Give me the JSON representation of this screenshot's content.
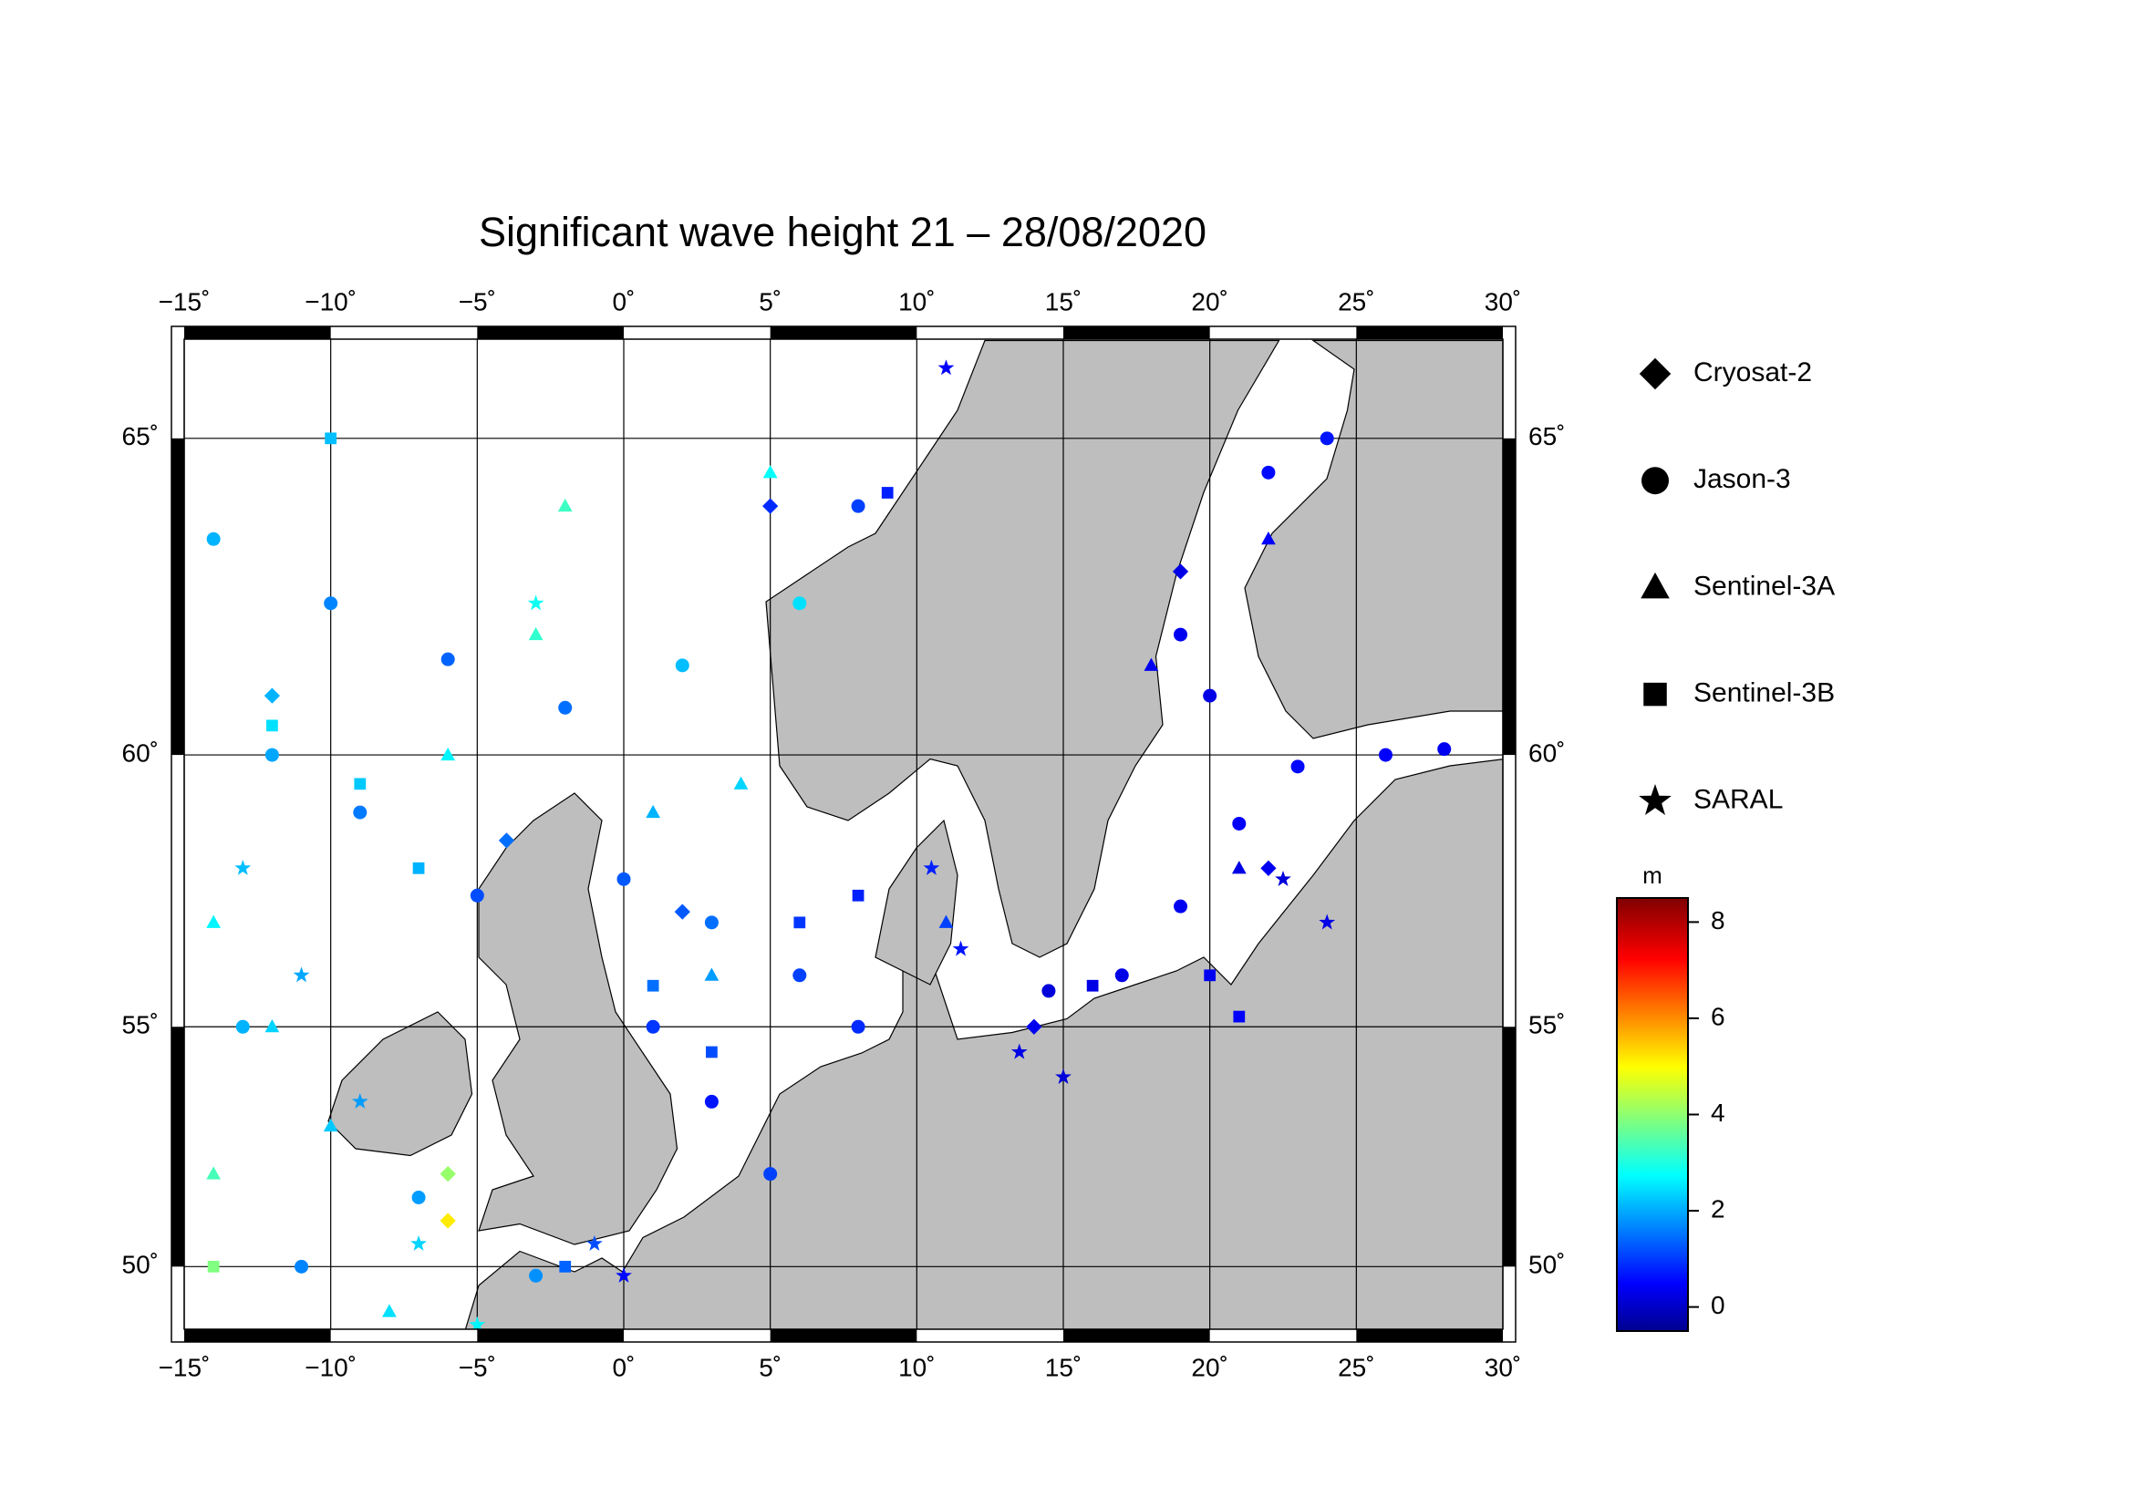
{
  "chart_data": {
    "type": "scatter",
    "title": "Significant wave height 21 – 28/08/2020",
    "xlim": [
      -15,
      30
    ],
    "ylim": [
      48.6,
      66.4
    ],
    "projection": "mercator",
    "grid": true,
    "xticks": [
      {
        "value": -15,
        "label": "−15˚"
      },
      {
        "value": -10,
        "label": "−10˚"
      },
      {
        "value": -5,
        "label": "−5˚"
      },
      {
        "value": 0,
        "label": "0˚"
      },
      {
        "value": 5,
        "label": "5˚"
      },
      {
        "value": 10,
        "label": "10˚"
      },
      {
        "value": 15,
        "label": "15˚"
      },
      {
        "value": 20,
        "label": "20˚"
      },
      {
        "value": 25,
        "label": "25˚"
      },
      {
        "value": 30,
        "label": "30˚"
      }
    ],
    "yticks": [
      {
        "value": 50,
        "label": "50˚"
      },
      {
        "value": 55,
        "label": "55˚"
      },
      {
        "value": 60,
        "label": "60˚"
      },
      {
        "value": 65,
        "label": "65˚"
      }
    ],
    "colorbar": {
      "label": "m",
      "lim": [
        -0.5,
        8.5
      ],
      "ticks": [
        0,
        2,
        4,
        6,
        8
      ],
      "colormap": "jet"
    },
    "series": [
      {
        "name": "Cryosat-2",
        "marker": "diamond",
        "x": [
          5,
          -12,
          -4,
          2,
          14,
          19,
          22,
          -6,
          -6
        ],
        "y": [
          64,
          61,
          58.5,
          57.2,
          55,
          63,
          58,
          52,
          51
        ],
        "values": [
          1.0,
          2.2,
          1.6,
          1.4,
          0.5,
          0.4,
          0.5,
          4.2,
          5.3
        ]
      },
      {
        "name": "Jason-3",
        "marker": "circle",
        "x": [
          -14,
          -10,
          -6,
          -2,
          2,
          6,
          8,
          0,
          3,
          6,
          8,
          -5,
          -9,
          -12,
          1,
          3,
          5,
          17,
          19,
          21,
          23,
          26,
          28,
          20,
          19,
          22,
          24,
          -11,
          -7,
          -3,
          14.5,
          -13
        ],
        "y": [
          63.5,
          62.5,
          61.6,
          60.8,
          61.5,
          62.5,
          64,
          57.8,
          57,
          56,
          55,
          57.5,
          59,
          60,
          55,
          53.5,
          52,
          56,
          57.3,
          58.8,
          59.8,
          60,
          60.1,
          61,
          62,
          64.5,
          65,
          50,
          51.5,
          49.8,
          55.7,
          55
        ],
        "values": [
          2.2,
          1.8,
          1.5,
          1.6,
          2.3,
          2.6,
          1.2,
          1.4,
          1.6,
          1.2,
          1.0,
          1.3,
          1.7,
          2.1,
          1.1,
          0.8,
          1.2,
          0.4,
          0.5,
          0.6,
          0.7,
          0.6,
          0.5,
          0.4,
          0.5,
          0.7,
          0.8,
          1.8,
          2.0,
          1.9,
          0.3,
          2.2
        ]
      },
      {
        "name": "Sentinel-3A",
        "marker": "triangle",
        "x": [
          -14,
          -12,
          -10,
          -14,
          -6,
          -3,
          1,
          4,
          3,
          11,
          18,
          22,
          -8,
          21,
          -2,
          5
        ],
        "y": [
          57,
          55,
          53,
          52,
          60,
          62,
          59,
          59.5,
          56,
          57,
          61.5,
          63.5,
          49,
          58,
          64,
          64.5
        ],
        "values": [
          2.8,
          2.5,
          2.4,
          3.5,
          2.8,
          3.3,
          2.2,
          2.5,
          2.0,
          1.2,
          0.5,
          0.6,
          2.6,
          0.4,
          3.4,
          2.9
        ]
      },
      {
        "name": "Sentinel-3B",
        "marker": "square",
        "x": [
          -12,
          -9,
          -7,
          1,
          3,
          6,
          8,
          20,
          21,
          -2,
          -14,
          -10,
          9,
          16
        ],
        "y": [
          60.5,
          59.5,
          58,
          55.8,
          54.5,
          57,
          57.5,
          56,
          55.2,
          50,
          50,
          65,
          64.2,
          55.8
        ],
        "values": [
          2.6,
          2.4,
          2.2,
          1.6,
          1.3,
          1.1,
          0.9,
          0.5,
          0.6,
          1.5,
          4.0,
          2.3,
          0.9,
          0.4
        ]
      },
      {
        "name": "SARAL",
        "marker": "star",
        "x": [
          -13,
          -11,
          -9,
          -7,
          -5,
          10.5,
          11.5,
          13.5,
          15,
          22.5,
          24,
          -1,
          0,
          -3,
          11
        ],
        "y": [
          58,
          56,
          53.5,
          50.5,
          48.7,
          58,
          56.5,
          54.5,
          54,
          57.8,
          57,
          50.5,
          49.8,
          62.5,
          66
        ],
        "values": [
          2.3,
          2.1,
          2.0,
          2.5,
          2.8,
          0.9,
          0.8,
          0.4,
          0.3,
          0.3,
          0.4,
          1.3,
          0.7,
          3.0,
          0.6
        ]
      }
    ]
  }
}
